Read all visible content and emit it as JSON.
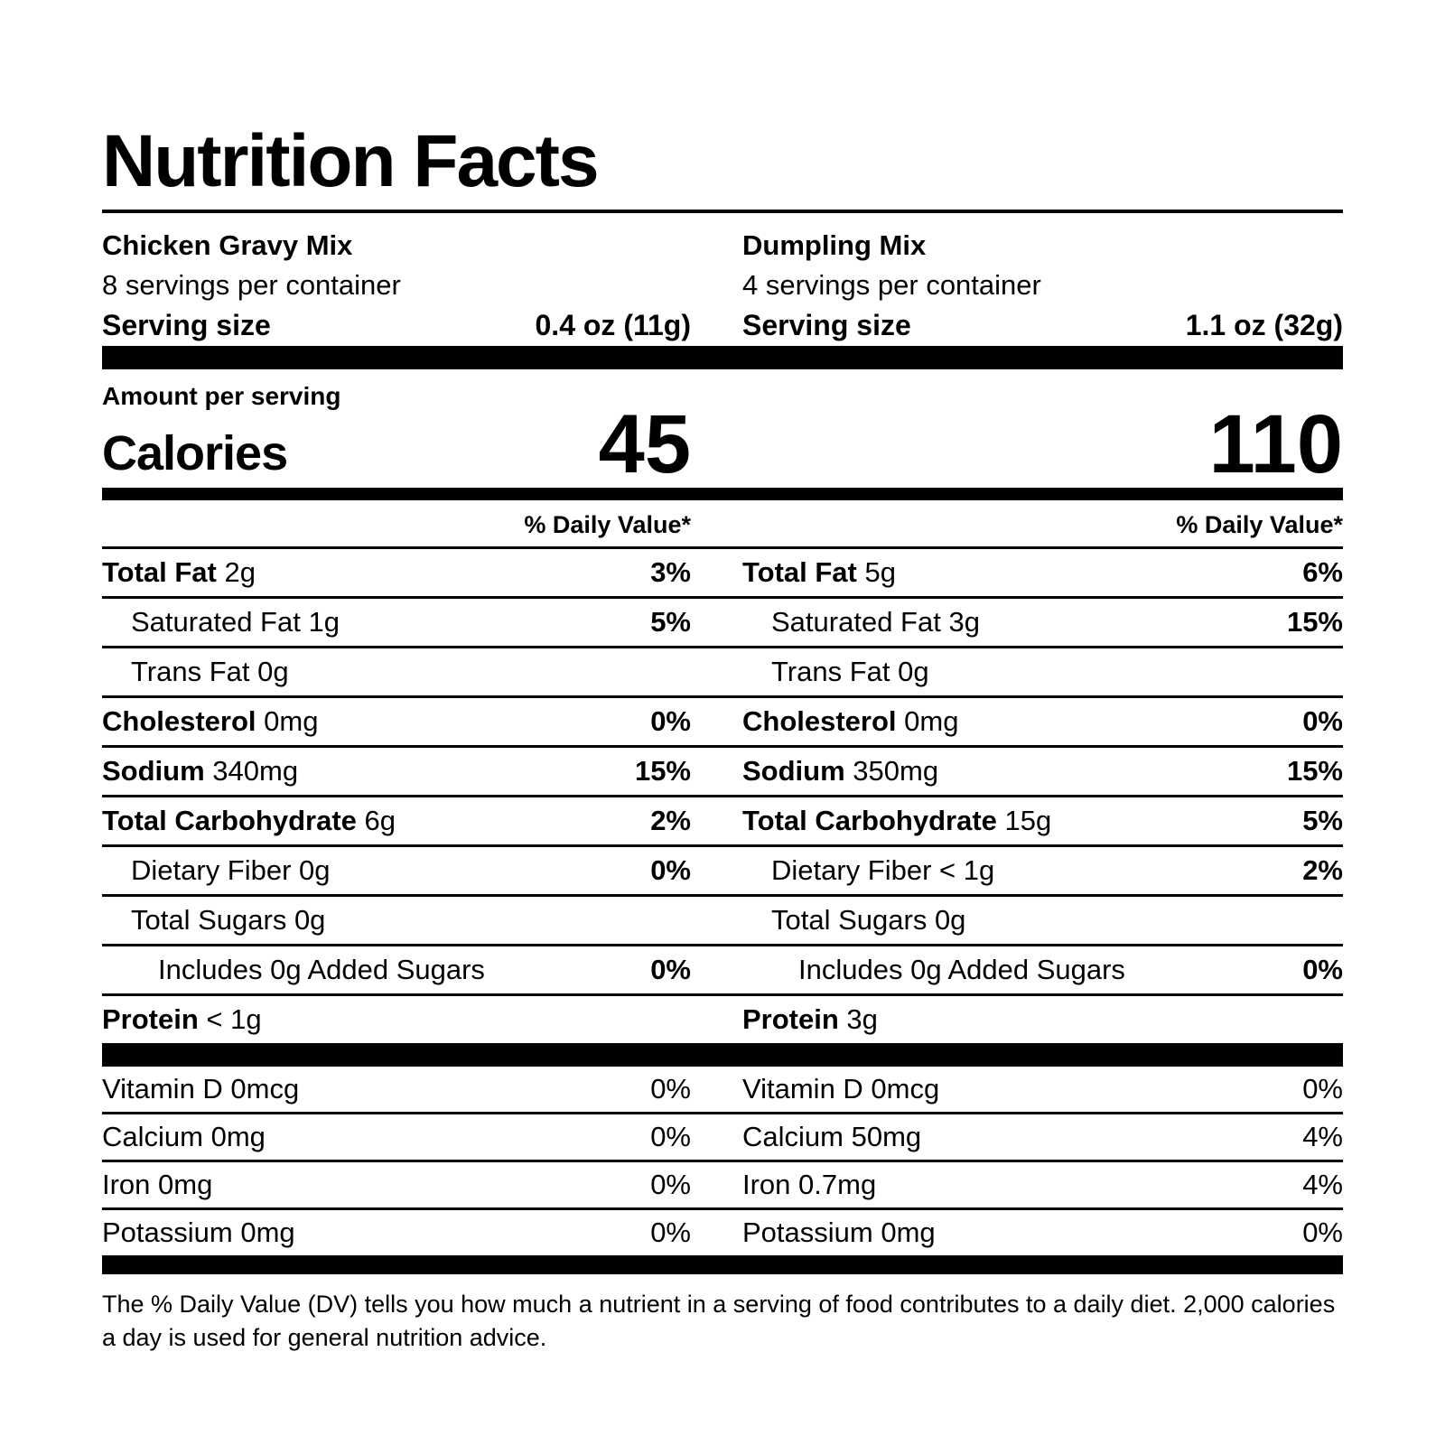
{
  "title": "Nutrition Facts",
  "left": {
    "product": "Chicken Gravy Mix",
    "servings_per_container": "8 servings per container",
    "serving_size_label": "Serving size",
    "serving_size_value": "0.4 oz (11g)",
    "amount_per_serving_label": "Amount per serving",
    "calories_label": "Calories",
    "calories_value": "45",
    "daily_value_header": "% Daily Value*"
  },
  "right": {
    "product": "Dumpling Mix",
    "servings_per_container": "4 servings per container",
    "serving_size_label": "Serving size",
    "serving_size_value": "1.1 oz (32g)",
    "calories_value": "110",
    "daily_value_header": "% Daily Value*"
  },
  "nutrient_rows": [
    {
      "level": 0,
      "bold": true,
      "left": {
        "name": "Total Fat",
        "amount": "2g",
        "dv": "3%"
      },
      "right": {
        "name": "Total Fat",
        "amount": "5g",
        "dv": "6%"
      }
    },
    {
      "level": 1,
      "bold": false,
      "left": {
        "name": "Saturated Fat",
        "amount": "1g",
        "dv": "5%"
      },
      "right": {
        "name": "Saturated Fat",
        "amount": "3g",
        "dv": "15%"
      }
    },
    {
      "level": 1,
      "bold": false,
      "left": {
        "name": "Trans Fat",
        "amount": "0g",
        "dv": ""
      },
      "right": {
        "name": "Trans Fat",
        "amount": "0g",
        "dv": ""
      }
    },
    {
      "level": 0,
      "bold": true,
      "left": {
        "name": "Cholesterol",
        "amount": "0mg",
        "dv": "0%"
      },
      "right": {
        "name": "Cholesterol",
        "amount": "0mg",
        "dv": "0%"
      }
    },
    {
      "level": 0,
      "bold": true,
      "left": {
        "name": "Sodium",
        "amount": "340mg",
        "dv": "15%"
      },
      "right": {
        "name": "Sodium",
        "amount": "350mg",
        "dv": "15%"
      }
    },
    {
      "level": 0,
      "bold": true,
      "left": {
        "name": "Total Carbohydrate",
        "amount": "6g",
        "dv": "2%"
      },
      "right": {
        "name": "Total Carbohydrate",
        "amount": "15g",
        "dv": "5%"
      }
    },
    {
      "level": 1,
      "bold": false,
      "left": {
        "name": "Dietary Fiber",
        "amount": "0g",
        "dv": "0%"
      },
      "right": {
        "name": "Dietary Fiber",
        "amount": "< 1g",
        "dv": "2%"
      }
    },
    {
      "level": 1,
      "bold": false,
      "left": {
        "name": "Total Sugars",
        "amount": "0g",
        "dv": ""
      },
      "right": {
        "name": "Total Sugars",
        "amount": "0g",
        "dv": ""
      }
    },
    {
      "level": 2,
      "bold": false,
      "left": {
        "name": "Includes 0g Added Sugars",
        "amount": "",
        "dv": "0%"
      },
      "right": {
        "name": "Includes 0g Added Sugars",
        "amount": "",
        "dv": "0%"
      }
    },
    {
      "level": 0,
      "bold": true,
      "left": {
        "name": "Protein",
        "amount": "< 1g",
        "dv": ""
      },
      "right": {
        "name": "Protein",
        "amount": "3g",
        "dv": ""
      }
    }
  ],
  "vitamin_rows": [
    {
      "left": {
        "name": "Vitamin D",
        "amount": "0mcg",
        "dv": "0%"
      },
      "right": {
        "name": "Vitamin D",
        "amount": "0mcg",
        "dv": "0%"
      }
    },
    {
      "left": {
        "name": "Calcium",
        "amount": "0mg",
        "dv": "0%"
      },
      "right": {
        "name": "Calcium",
        "amount": "50mg",
        "dv": "4%"
      }
    },
    {
      "left": {
        "name": "Iron",
        "amount": "0mg",
        "dv": "0%"
      },
      "right": {
        "name": "Iron",
        "amount": "0.7mg",
        "dv": "4%"
      }
    },
    {
      "left": {
        "name": "Potassium",
        "amount": "0mg",
        "dv": "0%"
      },
      "right": {
        "name": "Potassium",
        "amount": "0mg",
        "dv": "0%"
      }
    }
  ],
  "footnote": "The % Daily Value (DV) tells you how much a nutrient in a serving of food contributes to a daily diet. 2,000 calories a day is used for general nutrition advice.",
  "colors": {
    "text": "#000000",
    "background": "#ffffff"
  }
}
